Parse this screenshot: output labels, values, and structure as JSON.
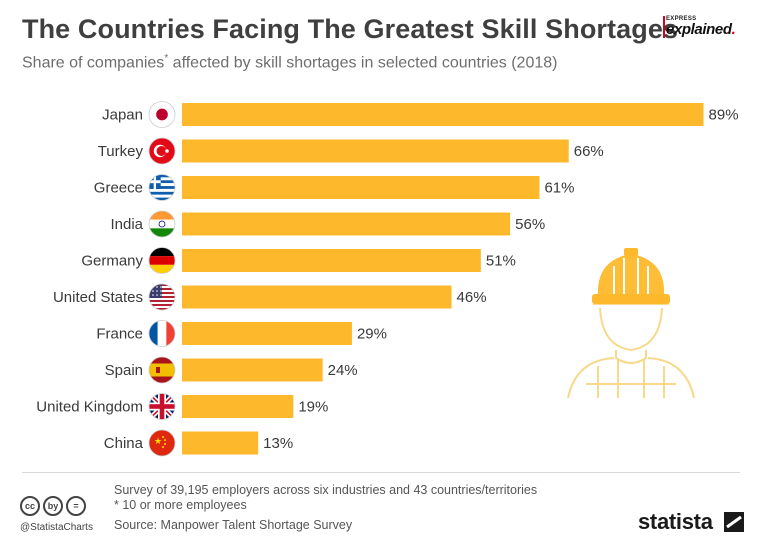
{
  "header": {
    "title": "The Countries Facing The Greatest Skill Shortages",
    "subtitle_pre": "Share of companies",
    "subtitle_mark": "*",
    "subtitle_post": " affected by skill shortages in selected countries (2018)"
  },
  "brand": {
    "small": "EXPRESS",
    "main": "explained",
    "dot": "."
  },
  "chart_data": {
    "type": "bar",
    "orientation": "horizontal",
    "title": "The Countries Facing The Greatest Skill Shortages",
    "subtitle": "Share of companies* affected by skill shortages in selected countries (2018)",
    "categories": [
      "Japan",
      "Turkey",
      "Greece",
      "India",
      "Germany",
      "United States",
      "France",
      "Spain",
      "United Kingdom",
      "China"
    ],
    "values": [
      89,
      66,
      61,
      56,
      51,
      46,
      29,
      24,
      19,
      13
    ],
    "value_labels": [
      "89%",
      "66%",
      "61%",
      "56%",
      "51%",
      "46%",
      "29%",
      "24%",
      "19%",
      "13%"
    ],
    "unit": "%",
    "xlim": [
      0,
      100
    ],
    "bar_color": "#fdb92b",
    "grid": false,
    "xlabel": "",
    "ylabel": ""
  },
  "flags": [
    "japan",
    "turkey",
    "greece",
    "india",
    "germany",
    "united-states",
    "france",
    "spain",
    "united-kingdom",
    "china"
  ],
  "footer": {
    "survey_note": "Survey of 39,195 employers across six industries and 43 countries/territories",
    "footnote": "* 10 or more employees",
    "source": "Source: Manpower Talent Shortage Survey",
    "handle": "@StatistaCharts",
    "logo_text": "statista",
    "cc_icons": [
      "cc",
      "by",
      "="
    ]
  },
  "colors": {
    "bar": "#fdb92b",
    "title": "#3f3f3f",
    "subtitle": "#6e6e6e",
    "worker_outline": "#f8d88a"
  }
}
